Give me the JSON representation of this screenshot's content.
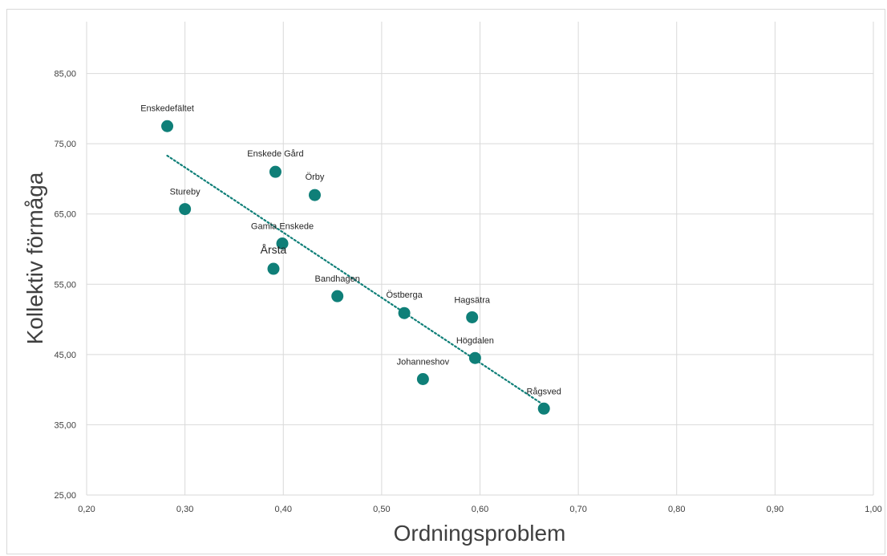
{
  "chart_data": {
    "type": "scatter",
    "xlabel": "Ordningsproblem",
    "ylabel": "Kollektiv förmåga",
    "xlim": [
      0.2,
      1.0
    ],
    "ylim": [
      25,
      95
    ],
    "x_ticks": [
      "0,20",
      "0,30",
      "0,40",
      "0,50",
      "0,60",
      "0,70",
      "0,80",
      "0,90",
      "1,00"
    ],
    "y_ticks": [
      "25,00",
      "35,00",
      "45,00",
      "55,00",
      "65,00",
      "75,00",
      "85,00"
    ],
    "grid": true,
    "legend": "none",
    "marker_color": "#0f7f78",
    "trendline": {
      "style": "dotted",
      "color": "#0f7f78",
      "x_start": 0.282,
      "y_start": 73.3,
      "x_end": 0.665,
      "y_end": 37.8
    },
    "points": [
      {
        "label": "Enskedefältet",
        "x": 0.282,
        "y": 77.5
      },
      {
        "label": "Enskede Gård",
        "x": 0.392,
        "y": 71.0
      },
      {
        "label": "Örby",
        "x": 0.432,
        "y": 67.7
      },
      {
        "label": "Stureby",
        "x": 0.3,
        "y": 65.7
      },
      {
        "label": "Gamla Enskede",
        "x": 0.399,
        "y": 60.8
      },
      {
        "label": "Årsta",
        "x": 0.39,
        "y": 57.2
      },
      {
        "label": "Bandhagen",
        "x": 0.455,
        "y": 53.3
      },
      {
        "label": "Östberga",
        "x": 0.523,
        "y": 50.9
      },
      {
        "label": "Hagsätra",
        "x": 0.592,
        "y": 50.3
      },
      {
        "label": "Högdalen",
        "x": 0.595,
        "y": 44.5
      },
      {
        "label": "Johanneshov",
        "x": 0.542,
        "y": 41.5
      },
      {
        "label": "Rågsved",
        "x": 0.665,
        "y": 37.3
      }
    ]
  }
}
